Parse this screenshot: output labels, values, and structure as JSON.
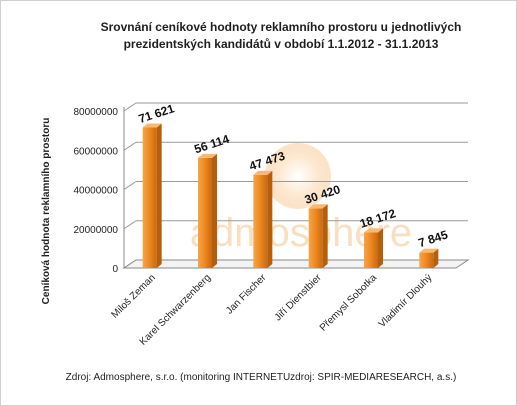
{
  "chart_data": {
    "type": "bar",
    "title_line1": "Srovnání ceníkové hodnoty reklamního prostoru u jednotlivých",
    "title_line2": "prezidentských kandidátů v období 1.1.2012  - 31.1.2013",
    "ylabel": "Ceníková hodnota reklamního prostoru",
    "xlabel": "",
    "categories": [
      "Miloš Zeman",
      "Karel Schwarzenberg",
      "Jan Fischer",
      "Jiří Dienstbier",
      "Přemysl Sobotka",
      "Vladimír Dlouhý"
    ],
    "values": [
      71621,
      56114,
      47473,
      30420,
      18172,
      7845
    ],
    "data_labels": [
      "71 621",
      "56 114",
      "47 473",
      "30 420",
      "18 172",
      "7 845"
    ],
    "y_ticks": [
      0,
      20000000,
      40000000,
      60000000,
      80000000
    ],
    "y_tick_labels": [
      "0",
      "20000000",
      "40000000",
      "60000000",
      "80000000"
    ],
    "ylim": [
      0,
      80000000
    ],
    "grid": true,
    "legend": "none",
    "bar_color": "#f28c28",
    "watermark": "admosphere",
    "source": "Zdroj: Admosphere, s.r.o. (monitoring INTERNETUzdroj: SPIR-MEDIARESEARCH, a.s.)"
  }
}
